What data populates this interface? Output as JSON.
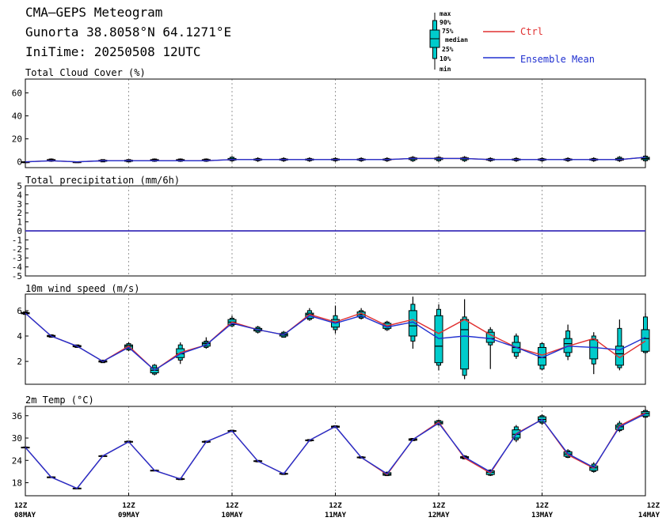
{
  "header": {
    "title": "CMA—GEPS Meteogram",
    "location": "Gunorta 38.8058°N 64.1271°E",
    "init_time": "IniTime: 20250508 12UTC"
  },
  "legend": {
    "box_labels": [
      "max",
      "90%",
      "75%",
      "median",
      "25%",
      "10%",
      "min"
    ],
    "ctrl_label": "Ctrl",
    "mean_label": "Ensemble Mean",
    "ctrl_color": "#e03030",
    "mean_color": "#2030d0",
    "box_color": "#00cccc"
  },
  "x_axis": {
    "ticks": [
      {
        "hour": "12Z",
        "day": "08MAY"
      },
      {
        "hour": "12Z",
        "day": "09MAY"
      },
      {
        "hour": "12Z",
        "day": "10MAY"
      },
      {
        "hour": "12Z",
        "day": "11MAY"
      },
      {
        "hour": "12Z",
        "day": "12MAY"
      },
      {
        "hour": "12Z",
        "day": "13MAY"
      },
      {
        "hour": "12Z",
        "day": "14MAY"
      }
    ]
  },
  "chart_data": [
    {
      "type": "box",
      "title": "Total Cloud Cover (%)",
      "ylim": [
        -5,
        72
      ],
      "yticks": [
        0,
        20,
        40,
        60
      ],
      "x": [
        0,
        6,
        12,
        18,
        24,
        30,
        36,
        42,
        48,
        54,
        60,
        66,
        72,
        78,
        84,
        90,
        96,
        102,
        108,
        114,
        120,
        126,
        132,
        138,
        144
      ],
      "ctrl": [
        0,
        1,
        0,
        1,
        1,
        1,
        1,
        1,
        2,
        2,
        2,
        2,
        2,
        2,
        2,
        3,
        3,
        3,
        2,
        2,
        2,
        2,
        2,
        2,
        4
      ],
      "mean": [
        0,
        1,
        0,
        1,
        1,
        1,
        1,
        1,
        2,
        2,
        2,
        2,
        2,
        2,
        2,
        3,
        3,
        3,
        2,
        2,
        2,
        2,
        2,
        2,
        4
      ],
      "box": [
        [
          0,
          0,
          0,
          0,
          0,
          0,
          0
        ],
        [
          0,
          0.5,
          1,
          1.5,
          2,
          2.5,
          3
        ],
        [
          0,
          0,
          0,
          0,
          0,
          0,
          0
        ],
        [
          0,
          0,
          0.5,
          1,
          1.5,
          2,
          2
        ],
        [
          0,
          0,
          0.5,
          1,
          1.5,
          2,
          2
        ],
        [
          0,
          0.5,
          1,
          1.5,
          2,
          2.5,
          3
        ],
        [
          0,
          0.5,
          1,
          1.5,
          2,
          2.5,
          3
        ],
        [
          0,
          0.5,
          1,
          1.5,
          2,
          2.5,
          3
        ],
        [
          0,
          1,
          1.5,
          2,
          3,
          4,
          5
        ],
        [
          0,
          1,
          1.5,
          2,
          2.5,
          3,
          4
        ],
        [
          0,
          1,
          1.5,
          2,
          2.5,
          3,
          4
        ],
        [
          0,
          1,
          1.5,
          2,
          2.5,
          3,
          4
        ],
        [
          0,
          1,
          1.5,
          2,
          2.5,
          3,
          4
        ],
        [
          0,
          1,
          1.5,
          2,
          2.5,
          3,
          4
        ],
        [
          0,
          1,
          1.5,
          2,
          2.5,
          3,
          4
        ],
        [
          0,
          1,
          2,
          3,
          3.5,
          4,
          5
        ],
        [
          0,
          1,
          2,
          3,
          3.5,
          4,
          5
        ],
        [
          0,
          1,
          2,
          3,
          3.5,
          4,
          5
        ],
        [
          0,
          1,
          1.5,
          2,
          2.5,
          3,
          4
        ],
        [
          0,
          1,
          1.5,
          2,
          2.5,
          3,
          4
        ],
        [
          0,
          1,
          1.5,
          2,
          2.5,
          3,
          4
        ],
        [
          0,
          1,
          1.5,
          2,
          2.5,
          3,
          4
        ],
        [
          0,
          1,
          1.5,
          2,
          2.5,
          3,
          4
        ],
        [
          0,
          1,
          1.5,
          2,
          3,
          4,
          5
        ],
        [
          0,
          1,
          2,
          3,
          4,
          5,
          6
        ]
      ]
    },
    {
      "type": "box",
      "title": "Total precipitation (mm/6h)",
      "ylim": [
        -5,
        5
      ],
      "yticks": [
        -5,
        -4,
        -3,
        -2,
        -1,
        0,
        1,
        2,
        3,
        4,
        5
      ],
      "x": [
        0,
        6,
        12,
        18,
        24,
        30,
        36,
        42,
        48,
        54,
        60,
        66,
        72,
        78,
        84,
        90,
        96,
        102,
        108,
        114,
        120,
        126,
        132,
        138,
        144
      ],
      "ctrl": [
        0,
        0,
        0,
        0,
        0,
        0,
        0,
        0,
        0,
        0,
        0,
        0,
        0,
        0,
        0,
        0,
        0,
        0,
        0,
        0,
        0,
        0,
        0,
        0,
        0
      ],
      "mean": [
        0,
        0,
        0,
        0,
        0,
        0,
        0,
        0,
        0,
        0,
        0,
        0,
        0,
        0,
        0,
        0,
        0,
        0,
        0,
        0,
        0,
        0,
        0,
        0,
        0
      ],
      "box": []
    },
    {
      "type": "box",
      "title": "10m wind speed (m/s)",
      "ylim": [
        0.2,
        7.3
      ],
      "yticks": [
        2,
        4,
        6
      ],
      "x": [
        0,
        6,
        12,
        18,
        24,
        30,
        36,
        42,
        48,
        54,
        60,
        66,
        72,
        78,
        84,
        90,
        96,
        102,
        108,
        114,
        120,
        126,
        132,
        138,
        144
      ],
      "ctrl": [
        5.8,
        4.0,
        3.2,
        2.0,
        3.2,
        1.3,
        2.7,
        3.3,
        5.1,
        4.5,
        4.1,
        5.7,
        5.1,
        5.8,
        4.8,
        5.3,
        4.2,
        5.3,
        4.1,
        3.1,
        2.5,
        3.2,
        3.8,
        2.3,
        3.6
      ],
      "mean": [
        5.8,
        4.0,
        3.2,
        2.0,
        3.1,
        1.3,
        2.6,
        3.3,
        5.0,
        4.5,
        4.1,
        5.6,
        5.0,
        5.6,
        4.7,
        5.1,
        3.8,
        4.0,
        3.8,
        3.1,
        2.3,
        3.2,
        3.1,
        2.9,
        3.9
      ],
      "box": [
        [
          5.7,
          5.7,
          5.75,
          5.8,
          5.85,
          5.9,
          5.9
        ],
        [
          3.9,
          3.9,
          3.95,
          4.0,
          4.05,
          4.1,
          4.1
        ],
        [
          3.1,
          3.1,
          3.15,
          3.2,
          3.25,
          3.3,
          3.3
        ],
        [
          1.9,
          1.9,
          1.95,
          2.0,
          2.05,
          2.1,
          2.1
        ],
        [
          2.8,
          2.9,
          3.0,
          3.2,
          3.3,
          3.4,
          3.5
        ],
        [
          0.9,
          1.0,
          1.1,
          1.3,
          1.5,
          1.7,
          1.8
        ],
        [
          1.8,
          2.1,
          2.3,
          2.6,
          3.0,
          3.3,
          3.5
        ],
        [
          3.0,
          3.1,
          3.2,
          3.4,
          3.5,
          3.6,
          3.9
        ],
        [
          4.7,
          4.8,
          4.9,
          5.1,
          5.3,
          5.4,
          5.6
        ],
        [
          4.2,
          4.3,
          4.4,
          4.5,
          4.6,
          4.7,
          4.8
        ],
        [
          3.9,
          3.9,
          4.0,
          4.1,
          4.2,
          4.3,
          4.4
        ],
        [
          5.2,
          5.3,
          5.4,
          5.7,
          5.8,
          6.0,
          6.2
        ],
        [
          4.2,
          4.5,
          4.7,
          5.1,
          5.3,
          5.6,
          6.4
        ],
        [
          5.3,
          5.4,
          5.5,
          5.7,
          5.9,
          6.0,
          6.2
        ],
        [
          4.4,
          4.5,
          4.6,
          4.8,
          5.0,
          5.1,
          5.2
        ],
        [
          3.0,
          3.6,
          4.0,
          4.8,
          6.0,
          6.5,
          7.1
        ],
        [
          1.3,
          1.7,
          1.9,
          3.2,
          5.6,
          6.1,
          6.5
        ],
        [
          0.6,
          0.9,
          1.4,
          4.5,
          5.3,
          5.5,
          6.9
        ],
        [
          1.4,
          3.3,
          3.5,
          3.8,
          4.3,
          4.5,
          4.7
        ],
        [
          2.2,
          2.4,
          2.7,
          3.1,
          3.5,
          4.0,
          4.2
        ],
        [
          1.3,
          1.4,
          1.7,
          2.3,
          3.1,
          3.4,
          3.5
        ],
        [
          2.1,
          2.4,
          2.7,
          3.4,
          3.8,
          4.4,
          4.9
        ],
        [
          1.0,
          1.8,
          2.2,
          3.1,
          3.7,
          4.0,
          4.3
        ],
        [
          1.3,
          1.5,
          1.7,
          2.6,
          3.2,
          4.6,
          5.3
        ],
        [
          2.6,
          2.7,
          2.8,
          3.8,
          4.5,
          5.5,
          5.8
        ]
      ]
    },
    {
      "type": "box",
      "title": "2m Temp (°C)",
      "ylim": [
        14.5,
        38.5
      ],
      "yticks": [
        18,
        24,
        30,
        36
      ],
      "x": [
        0,
        6,
        12,
        18,
        24,
        30,
        36,
        42,
        48,
        54,
        60,
        66,
        72,
        78,
        84,
        90,
        96,
        102,
        108,
        114,
        120,
        126,
        132,
        138,
        144
      ],
      "ctrl": [
        27.5,
        19.5,
        16.5,
        25.2,
        29.0,
        21.3,
        19.0,
        29.0,
        31.9,
        23.8,
        20.4,
        29.4,
        33.1,
        24.8,
        20.2,
        29.6,
        34.3,
        24.6,
        20.6,
        31.2,
        35.0,
        25.5,
        21.9,
        33.3,
        36.8
      ],
      "mean": [
        27.5,
        19.5,
        16.5,
        25.2,
        29.0,
        21.3,
        19.0,
        29.0,
        31.9,
        23.8,
        20.4,
        29.4,
        33.1,
        24.8,
        20.4,
        29.6,
        34.0,
        24.9,
        20.9,
        31.0,
        35.0,
        25.8,
        22.1,
        33.0,
        36.5
      ],
      "box": [
        [
          27.4,
          27.4,
          27.45,
          27.5,
          27.55,
          27.6,
          27.6
        ],
        [
          19.4,
          19.4,
          19.45,
          19.5,
          19.55,
          19.6,
          19.6
        ],
        [
          16.4,
          16.4,
          16.45,
          16.5,
          16.55,
          16.6,
          16.6
        ],
        [
          25.1,
          25.1,
          25.15,
          25.2,
          25.25,
          25.3,
          25.3
        ],
        [
          28.8,
          28.8,
          28.9,
          29.0,
          29.1,
          29.2,
          29.2
        ],
        [
          21.2,
          21.2,
          21.25,
          21.3,
          21.35,
          21.4,
          21.4
        ],
        [
          18.8,
          18.8,
          18.9,
          19.0,
          19.1,
          19.2,
          19.2
        ],
        [
          28.8,
          28.8,
          28.9,
          29.0,
          29.1,
          29.2,
          29.2
        ],
        [
          31.6,
          31.7,
          31.8,
          31.9,
          32.0,
          32.1,
          32.2
        ],
        [
          23.6,
          23.6,
          23.7,
          23.8,
          23.9,
          24.0,
          24.0
        ],
        [
          20.1,
          20.2,
          20.3,
          20.4,
          20.5,
          20.6,
          20.7
        ],
        [
          29.1,
          29.2,
          29.3,
          29.4,
          29.5,
          29.6,
          29.7
        ],
        [
          32.7,
          32.8,
          32.9,
          33.1,
          33.2,
          33.3,
          33.4
        ],
        [
          24.5,
          24.6,
          24.7,
          24.8,
          24.9,
          25.0,
          25.1
        ],
        [
          19.8,
          19.9,
          20.0,
          20.3,
          20.7,
          20.8,
          21.0
        ],
        [
          29.2,
          29.3,
          29.4,
          29.6,
          29.8,
          29.9,
          30.0
        ],
        [
          33.3,
          33.6,
          33.8,
          34.1,
          34.5,
          34.7,
          34.9
        ],
        [
          24.3,
          24.4,
          24.6,
          24.8,
          25.0,
          25.2,
          25.4
        ],
        [
          19.8,
          20.0,
          20.2,
          20.8,
          21.2,
          21.4,
          21.6
        ],
        [
          28.9,
          29.5,
          30.0,
          31.0,
          32.2,
          33.0,
          33.5
        ],
        [
          33.5,
          34.0,
          34.3,
          35.0,
          35.7,
          36.0,
          36.4
        ],
        [
          24.6,
          24.8,
          25.1,
          25.7,
          26.3,
          26.6,
          27.0
        ],
        [
          20.7,
          21.0,
          21.3,
          22.0,
          22.5,
          23.0,
          23.5
        ],
        [
          31.6,
          32.0,
          32.3,
          33.0,
          33.5,
          34.0,
          34.6
        ],
        [
          35.3,
          35.6,
          35.9,
          36.6,
          37.1,
          37.4,
          37.7
        ]
      ]
    }
  ]
}
